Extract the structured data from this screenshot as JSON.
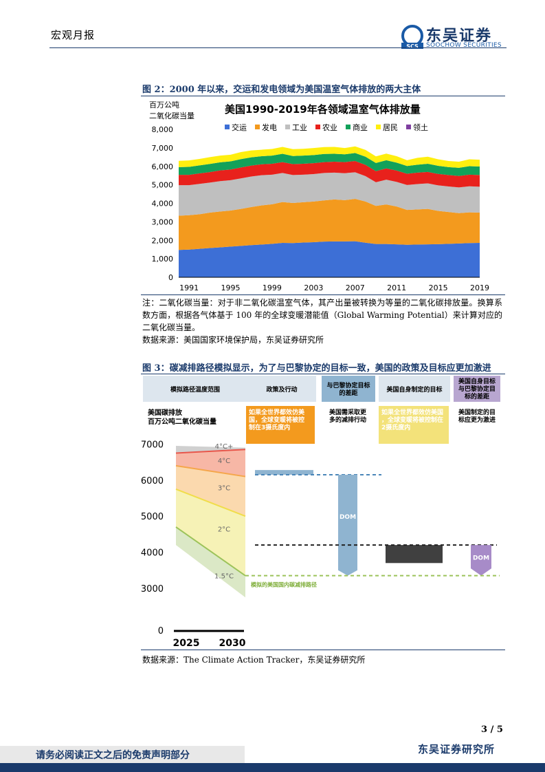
{
  "header": {
    "report_type": "宏观月报",
    "logo_cn": "东吴证券",
    "logo_en": "SOOCHOW SECURITIES",
    "logo_mark": "SCS"
  },
  "figure2": {
    "title": "图 2：2000 年以来，交运和发电领域为美国温室气体排放的两大主体",
    "note": "注：二氧化碳当量：对于非二氧化碳温室气体，其产出量被转换为等量的二氧化碳排放量。换算系数方面，根据各气体基于 100 年的全球变暖潜能值（Global Warming Potential）来计算对应的二氧化碳当量。",
    "source": "数据来源：美国国家环境保护局，东吴证券研究所"
  },
  "figure3": {
    "title": "图 3：碳减排路径模拟显示，为了与巴黎协定的目标一致，美国的政策及目标应更加激进",
    "source": "数据来源：The Climate Action Tracker，东吴证券研究所"
  },
  "chart_data": [
    {
      "type": "area",
      "title": "美国1990-2019年各领域温室气体排放量",
      "ylabel_line1": "百万公吨",
      "ylabel_line2": "二氧化碳当量",
      "ylim": [
        0,
        8000
      ],
      "yticks": [
        "0",
        "1,000",
        "2,000",
        "3,000",
        "4,000",
        "5,000",
        "6,000",
        "7,000",
        "8,000"
      ],
      "xticks": [
        "1991",
        "1995",
        "1999",
        "2003",
        "2007",
        "2011",
        "2015",
        "2019"
      ],
      "x": [
        1990,
        1991,
        1992,
        1993,
        1994,
        1995,
        1996,
        1997,
        1998,
        1999,
        2000,
        2001,
        2002,
        2003,
        2004,
        2005,
        2006,
        2007,
        2008,
        2009,
        2010,
        2011,
        2012,
        2013,
        2014,
        2015,
        2016,
        2017,
        2018,
        2019
      ],
      "series": [
        {
          "name": "交运",
          "color": "#3d6fd6",
          "values": [
            1480,
            1500,
            1540,
            1580,
            1620,
            1660,
            1700,
            1740,
            1770,
            1810,
            1860,
            1850,
            1880,
            1900,
            1930,
            1940,
            1940,
            1950,
            1870,
            1800,
            1800,
            1780,
            1760,
            1770,
            1780,
            1790,
            1810,
            1830,
            1850,
            1860
          ]
        },
        {
          "name": "发电",
          "color": "#f39a1e",
          "values": [
            1850,
            1860,
            1870,
            1920,
            1940,
            1950,
            2000,
            2060,
            2120,
            2140,
            2210,
            2170,
            2180,
            2200,
            2230,
            2270,
            2230,
            2290,
            2230,
            2060,
            2140,
            2050,
            1880,
            1900,
            1920,
            1800,
            1720,
            1640,
            1660,
            1640
          ]
        },
        {
          "name": "工业",
          "color": "#bfbfbf",
          "values": [
            1650,
            1620,
            1640,
            1620,
            1640,
            1640,
            1650,
            1650,
            1630,
            1600,
            1570,
            1510,
            1490,
            1480,
            1480,
            1450,
            1460,
            1440,
            1370,
            1280,
            1340,
            1330,
            1350,
            1370,
            1380,
            1380,
            1380,
            1390,
            1410,
            1400
          ]
        },
        {
          "name": "农业",
          "color": "#e8211c",
          "values": [
            560,
            560,
            570,
            570,
            580,
            580,
            590,
            590,
            590,
            590,
            590,
            590,
            590,
            590,
            590,
            590,
            600,
            610,
            610,
            600,
            610,
            610,
            610,
            620,
            620,
            620,
            620,
            620,
            630,
            630
          ]
        },
        {
          "name": "商业",
          "color": "#12a15a",
          "values": [
            420,
            430,
            430,
            440,
            440,
            440,
            450,
            450,
            440,
            440,
            450,
            440,
            440,
            440,
            440,
            430,
            420,
            430,
            440,
            440,
            440,
            430,
            420,
            430,
            440,
            440,
            430,
            440,
            460,
            460
          ]
        },
        {
          "name": "居民",
          "color": "#ffef0f",
          "values": [
            340,
            350,
            350,
            370,
            360,
            360,
            380,
            370,
            350,
            360,
            370,
            370,
            370,
            380,
            370,
            370,
            340,
            360,
            370,
            360,
            360,
            350,
            310,
            370,
            380,
            350,
            330,
            330,
            370,
            370
          ]
        },
        {
          "name": "领土",
          "color": "#7f3fa0",
          "values": [
            0,
            0,
            0,
            0,
            0,
            0,
            0,
            0,
            0,
            0,
            0,
            0,
            0,
            0,
            0,
            0,
            0,
            0,
            0,
            0,
            0,
            0,
            0,
            0,
            0,
            0,
            0,
            0,
            0,
            0
          ]
        }
      ]
    },
    {
      "type": "other",
      "title": "碳减排路径模拟",
      "ylabel_line1": "美国碳排放",
      "ylabel_line2": "百万公吨二氧化碳当量",
      "yticks": [
        "0",
        "3000",
        "4000",
        "5000",
        "6000",
        "7000"
      ],
      "xticks": [
        "2025",
        "2030"
      ],
      "scenario_labels": [
        "4°C+",
        "4°C",
        "3°C",
        "2°C",
        "1.5°C"
      ],
      "path_label": "模拟的美国国内碳减排路径",
      "gap_label": "DOM",
      "columns": [
        {
          "label": "模拟路径温度范围",
          "color": "#dde6ee"
        },
        {
          "label": "政策及行动",
          "color": "#dde6ee"
        },
        {
          "label": "与巴黎协定目标的差距",
          "color": "#8fb4d0"
        },
        {
          "label": "美国自身制定的目标",
          "color": "#dde6ee"
        },
        {
          "label": "美国自身目标与巴黎协定目标的差距",
          "color": "#b8a6d0"
        }
      ],
      "annotations": [
        {
          "text": "如果全世界都效仿美国，全球变暖将被控制在3摄氏度内",
          "bg": "#f39a1e",
          "color": "#ffffff"
        },
        {
          "text": "美国需采取更多的减排行动",
          "bg": "#ffffff",
          "color": "#000000"
        },
        {
          "text": "如果全世界都效仿美国，全球变暖将被控制在2摄氏度内",
          "bg": "#f3e27a",
          "color": "#ffffff"
        },
        {
          "text": "美国制定的目标应更为激进",
          "bg": "#ffffff",
          "color": "#000000"
        }
      ],
      "policy_level": 6150,
      "target_level": 4200,
      "paris_level": 3350
    }
  ],
  "footer": {
    "page": "3 / 5",
    "disclaimer": "请务必阅读正文之后的免责声明部分",
    "firm": "东吴证券研究所"
  }
}
